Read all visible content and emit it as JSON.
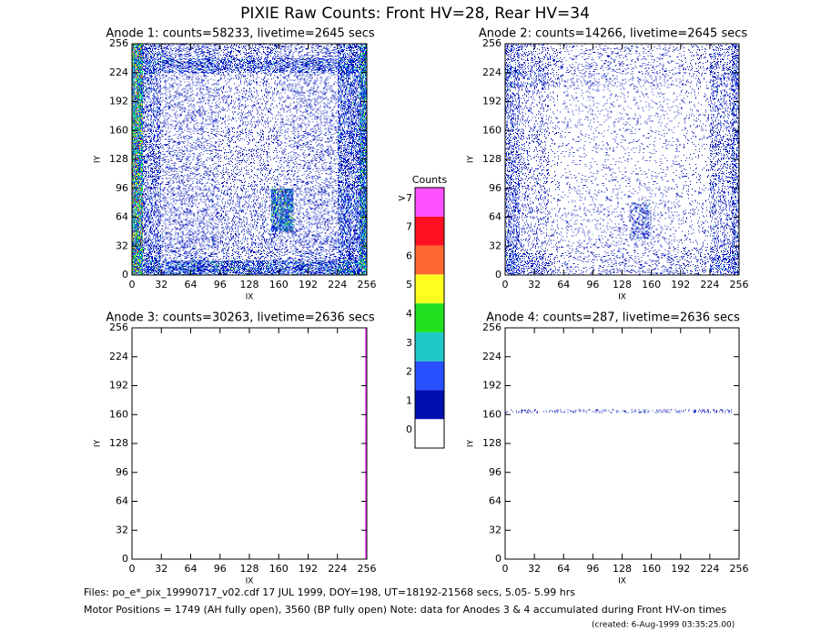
{
  "title": "PIXIE Raw Counts:  Front HV=28, Rear HV=34",
  "colorbar": {
    "title": "Counts",
    "labels": [
      "0",
      "1",
      "2",
      "3",
      "4",
      "5",
      "6",
      "7",
      ">7"
    ],
    "colors": [
      "#ffffff",
      "#0010b0",
      "#2850ff",
      "#20c8c8",
      "#20e020",
      "#ffff20",
      "#ff6830",
      "#ff1020",
      "#ff50ff"
    ]
  },
  "footer": [
    "Files: po_e*_pix_19990717_v02.cdf    17 JUL 1999, DOY=198, UT=18192-21568 secs,  5.05- 5.99 hrs",
    "Motor Positions = 1749 (AH fully open), 3560 (BP fully open)    Note: data for Anodes 3 & 4 accumulated during Front HV-on times",
    "(created:  6-Aug-1999 03:35:25.00)"
  ],
  "chart_data": [
    {
      "type": "heatmap",
      "title": "Anode 1: counts=58233, livetime=2645 secs",
      "x_label": "IX",
      "y_label": "IY",
      "xlim": [
        0,
        256
      ],
      "ylim": [
        0,
        256
      ],
      "xticks": [
        0,
        32,
        64,
        96,
        128,
        160,
        192,
        224,
        256
      ],
      "yticks": [
        0,
        32,
        64,
        96,
        128,
        160,
        192,
        224,
        256
      ],
      "xbins": [
        0,
        12,
        32,
        96,
        152,
        176,
        224,
        248,
        256
      ],
      "ybins": [
        0,
        16,
        48,
        96,
        224,
        240,
        256
      ],
      "values": [
        [
          3,
          1.2,
          1.0,
          1.0,
          1.0,
          1.0,
          1.5,
          2.5
        ],
        [
          3,
          0.6,
          0.3,
          0.25,
          0.3,
          0.3,
          0.8,
          2
        ],
        [
          3,
          0.5,
          0.25,
          0.2,
          1.8,
          0.25,
          0.8,
          2
        ],
        [
          3,
          0.5,
          0.2,
          0.15,
          0.15,
          0.2,
          0.7,
          1.8
        ],
        [
          3,
          1.0,
          0.8,
          0.7,
          0.7,
          0.8,
          1.2,
          2
        ],
        [
          3,
          0.6,
          0.4,
          0.3,
          0.3,
          0.3,
          0.7,
          2
        ]
      ]
    },
    {
      "type": "heatmap",
      "title": "Anode 2: counts=14266, livetime=2645 secs",
      "x_label": "IX",
      "y_label": "IY",
      "xlim": [
        0,
        256
      ],
      "ylim": [
        0,
        256
      ],
      "xticks": [
        0,
        32,
        64,
        96,
        128,
        160,
        192,
        224,
        256
      ],
      "yticks": [
        0,
        32,
        64,
        96,
        128,
        160,
        192,
        224,
        256
      ],
      "xbins": [
        0,
        16,
        48,
        136,
        160,
        224,
        248,
        256
      ],
      "ybins": [
        0,
        24,
        40,
        80,
        208,
        232,
        256
      ],
      "values": [
        [
          0.8,
          0.4,
          0.15,
          0.15,
          0.2,
          0.5,
          0.8
        ],
        [
          0.5,
          0.2,
          0.1,
          0.1,
          0.1,
          0.3,
          0.6
        ],
        [
          0.5,
          0.15,
          0.08,
          0.5,
          0.08,
          0.25,
          0.6
        ],
        [
          0.4,
          0.15,
          0.06,
          0.06,
          0.06,
          0.25,
          0.6
        ],
        [
          0.6,
          0.3,
          0.15,
          0.12,
          0.12,
          0.35,
          0.8
        ],
        [
          0.4,
          0.2,
          0.12,
          0.1,
          0.1,
          0.25,
          0.6
        ]
      ]
    },
    {
      "type": "heatmap",
      "title": "Anode 3: counts=30263, livetime=2636 secs",
      "x_label": "IX",
      "y_label": "IY",
      "xlim": [
        0,
        256
      ],
      "ylim": [
        0,
        256
      ],
      "xticks": [
        0,
        32,
        64,
        96,
        128,
        160,
        192,
        224,
        256
      ],
      "yticks": [
        0,
        32,
        64,
        96,
        128,
        160,
        192,
        224,
        256
      ],
      "xbins": [
        0,
        254,
        256
      ],
      "ybins": [
        0,
        256
      ],
      "values": [
        [
          0,
          59
        ]
      ]
    },
    {
      "type": "heatmap",
      "title": "Anode 4: counts=287, livetime=2636 secs",
      "x_label": "IX",
      "y_label": "IY",
      "xlim": [
        0,
        256
      ],
      "ylim": [
        0,
        256
      ],
      "xticks": [
        0,
        32,
        64,
        96,
        128,
        160,
        192,
        224,
        256
      ],
      "yticks": [
        0,
        32,
        64,
        96,
        128,
        160,
        192,
        224,
        256
      ],
      "xbins": [
        0,
        248,
        256
      ],
      "ybins": [
        0,
        162,
        166,
        256
      ],
      "values": [
        [
          0,
          0
        ],
        [
          0.25,
          0
        ],
        [
          0,
          0
        ]
      ]
    }
  ]
}
